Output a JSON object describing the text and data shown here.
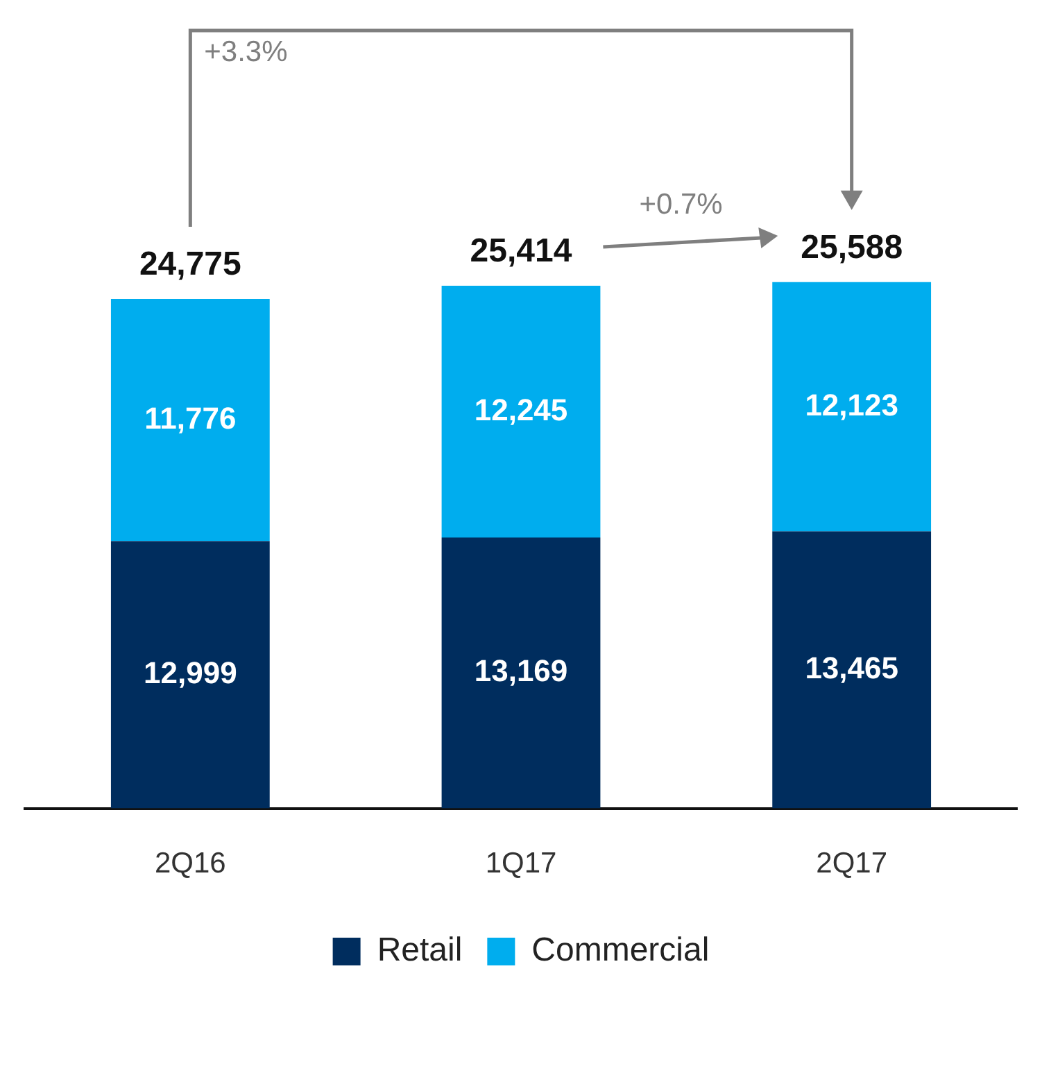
{
  "chart_data": {
    "type": "bar",
    "stacked": true,
    "categories": [
      "2Q16",
      "1Q17",
      "2Q17"
    ],
    "series": [
      {
        "name": "Retail",
        "color": "#002d5e",
        "values": [
          12999,
          13169,
          13465
        ],
        "value_labels": [
          "12,999",
          "13,169",
          "13,465"
        ]
      },
      {
        "name": "Commercial",
        "color": "#00adee",
        "values": [
          11776,
          12245,
          12123
        ],
        "value_labels": [
          "11,776",
          "12,245",
          "12,123"
        ]
      }
    ],
    "totals": [
      "24,775",
      "25,414",
      "25,588"
    ],
    "annotations": [
      "+3.3%",
      "+0.7%"
    ],
    "legend": "bottom",
    "tick_labels": "x"
  }
}
